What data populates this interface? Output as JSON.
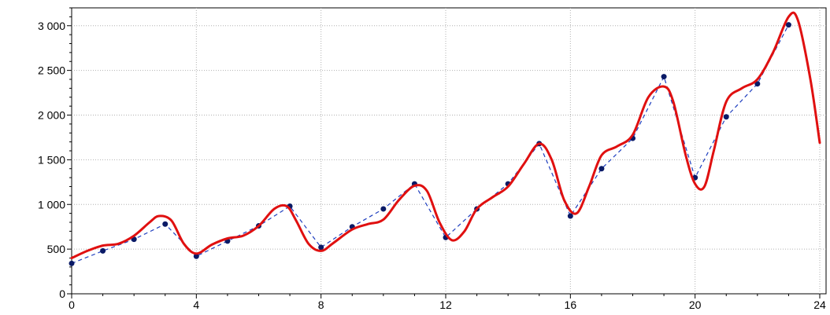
{
  "chart_data": {
    "type": "line",
    "title": "",
    "xlabel": "",
    "ylabel": "",
    "xlim": [
      0,
      24
    ],
    "ylim": [
      0,
      3200
    ],
    "x_ticks": [
      0,
      4,
      8,
      12,
      16,
      20,
      24
    ],
    "x_tick_labels": [
      "0",
      "4",
      "8",
      "12",
      "16",
      "20",
      "24"
    ],
    "y_ticks": [
      0,
      500,
      1000,
      1500,
      2000,
      2500,
      3000
    ],
    "y_tick_labels": [
      "0",
      "500",
      "1 000",
      "1 500",
      "2 000",
      "2 500",
      "3 000"
    ],
    "grid": true,
    "series": [
      {
        "style": "points-dashed",
        "color": "#1f3fbf",
        "marker_color": "#0a1a66",
        "x": [
          0,
          1,
          2,
          3,
          4,
          5,
          6,
          7,
          8,
          9,
          10,
          11,
          12,
          13,
          14,
          15,
          16,
          17,
          18,
          19,
          20,
          21,
          22,
          23
        ],
        "y": [
          340,
          480,
          610,
          780,
          420,
          590,
          760,
          980,
          520,
          750,
          950,
          1230,
          630,
          950,
          1230,
          1680,
          870,
          1400,
          1740,
          2430,
          1300,
          1980,
          2350,
          3010
        ]
      },
      {
        "style": "smooth-line",
        "color": "#e01010",
        "x": [
          0,
          0.5,
          1,
          1.5,
          2,
          2.5,
          2.8,
          3.2,
          3.6,
          4,
          4.5,
          5,
          5.5,
          6,
          6.5,
          6.9,
          7.2,
          7.6,
          8,
          8.4,
          9,
          9.5,
          10,
          10.5,
          11,
          11.4,
          11.8,
          12.2,
          12.6,
          13,
          13.5,
          14,
          14.5,
          15,
          15.4,
          15.8,
          16.2,
          16.6,
          17,
          17.5,
          18,
          18.5,
          19,
          19.3,
          19.7,
          20,
          20.3,
          20.6,
          21,
          21.5,
          22,
          22.5,
          23,
          23.3,
          23.7,
          24
        ],
        "y": [
          400,
          480,
          540,
          560,
          650,
          800,
          870,
          820,
          560,
          450,
          550,
          620,
          650,
          760,
          950,
          980,
          820,
          560,
          480,
          570,
          720,
          780,
          830,
          1050,
          1210,
          1150,
          800,
          600,
          700,
          950,
          1080,
          1200,
          1450,
          1680,
          1500,
          1050,
          900,
          1200,
          1550,
          1650,
          1780,
          2200,
          2320,
          2150,
          1550,
          1230,
          1200,
          1600,
          2150,
          2300,
          2400,
          2700,
          3100,
          3060,
          2400,
          1690
        ]
      }
    ]
  }
}
